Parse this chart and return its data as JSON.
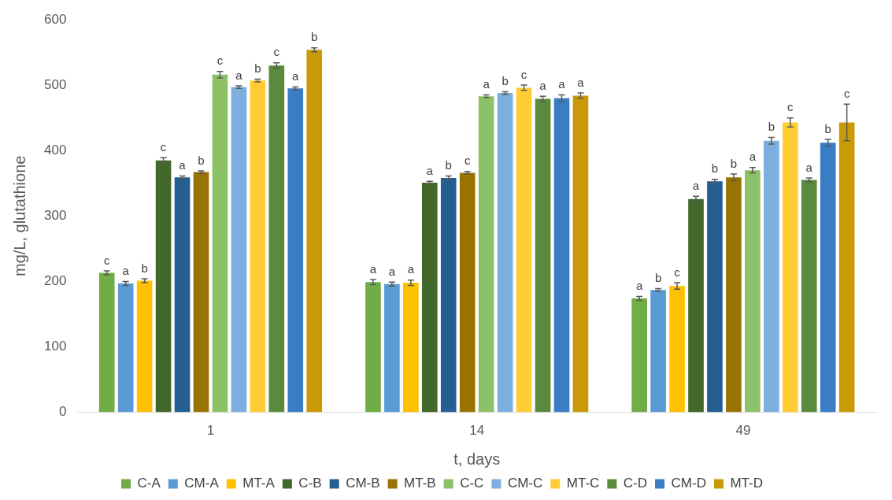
{
  "chart_data": {
    "type": "bar",
    "xlabel": "t, days",
    "ylabel": "mg/L, glutathione",
    "categories": [
      "1",
      "14",
      "49"
    ],
    "ylim": [
      0,
      600
    ],
    "yticks": [
      0,
      100,
      200,
      300,
      400,
      500,
      600
    ],
    "grid": false,
    "legend": "bottom",
    "series": [
      {
        "name": "C-A",
        "color": "#70ad47",
        "values": [
          213,
          199,
          174
        ],
        "errors": [
          3,
          4,
          3
        ],
        "value_labels": [
          "c",
          "a",
          "a"
        ]
      },
      {
        "name": "CM-A",
        "color": "#5b9bd5",
        "values": [
          197,
          196,
          187
        ],
        "errors": [
          3,
          3,
          2
        ],
        "value_labels": [
          "a",
          "a",
          "b"
        ]
      },
      {
        "name": "MT-A",
        "color": "#ffc000",
        "values": [
          201,
          198,
          193
        ],
        "errors": [
          3,
          4,
          5
        ],
        "value_labels": [
          "b",
          "a",
          "c"
        ]
      },
      {
        "name": "C-B",
        "color": "#43682b",
        "values": [
          385,
          351,
          326
        ],
        "errors": [
          4,
          2,
          4
        ],
        "value_labels": [
          "c",
          "a",
          "a"
        ]
      },
      {
        "name": "CM-B",
        "color": "#255e91",
        "values": [
          359,
          358,
          353
        ],
        "errors": [
          2,
          3,
          3
        ],
        "value_labels": [
          "a",
          "b",
          "b"
        ]
      },
      {
        "name": "MT-B",
        "color": "#997300",
        "values": [
          367,
          366,
          359
        ],
        "errors": [
          2,
          2,
          5
        ],
        "value_labels": [
          "b",
          "c",
          "b"
        ]
      },
      {
        "name": "C-C",
        "color": "#8cc168",
        "values": [
          516,
          483,
          370
        ],
        "errors": [
          5,
          2,
          4
        ],
        "value_labels": [
          "c",
          "a",
          "a"
        ]
      },
      {
        "name": "CM-C",
        "color": "#7cafdd",
        "values": [
          497,
          488,
          415
        ],
        "errors": [
          2,
          2,
          5
        ],
        "value_labels": [
          "a",
          "b",
          "b"
        ]
      },
      {
        "name": "MT-C",
        "color": "#ffcd33",
        "values": [
          507,
          496,
          443
        ],
        "errors": [
          2,
          4,
          7
        ],
        "value_labels": [
          "b",
          "c",
          "c"
        ]
      },
      {
        "name": "C-D",
        "color": "#5a8a3c",
        "values": [
          530,
          479,
          355
        ],
        "errors": [
          4,
          4,
          3
        ],
        "value_labels": [
          "c",
          "a",
          "a"
        ]
      },
      {
        "name": "CM-D",
        "color": "#3a7dc4",
        "values": [
          495,
          480,
          412
        ],
        "errors": [
          2,
          5,
          5
        ],
        "value_labels": [
          "a",
          "a",
          "b"
        ]
      },
      {
        "name": "MT-D",
        "color": "#c99a06",
        "values": [
          554,
          484,
          443
        ],
        "errors": [
          3,
          4,
          28
        ],
        "value_labels": [
          "b",
          "a",
          "c"
        ]
      }
    ]
  }
}
